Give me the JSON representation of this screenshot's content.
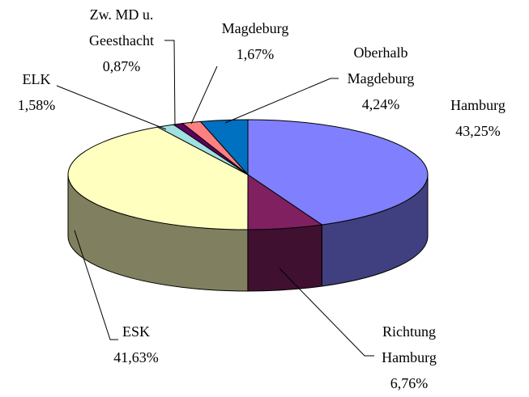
{
  "chart_data": {
    "type": "pie3d",
    "categories": [
      "Hamburg",
      "Richtung Hamburg",
      "ESK",
      "ELK",
      "Zw. MD u. Geesthacht",
      "Magdeburg",
      "Oberhalb Magdeburg"
    ],
    "values": [
      43.25,
      6.76,
      41.63,
      1.58,
      0.87,
      1.67,
      4.24
    ],
    "value_labels": [
      "43,25%",
      "6,76%",
      "41,63%",
      "1,58%",
      "0,87%",
      "1,67%",
      "4,24%"
    ],
    "colors": [
      "#8080ff",
      "#802060",
      "#ffffc0",
      "#a0e0e0",
      "#600060",
      "#ff8080",
      "#0070c0"
    ]
  }
}
